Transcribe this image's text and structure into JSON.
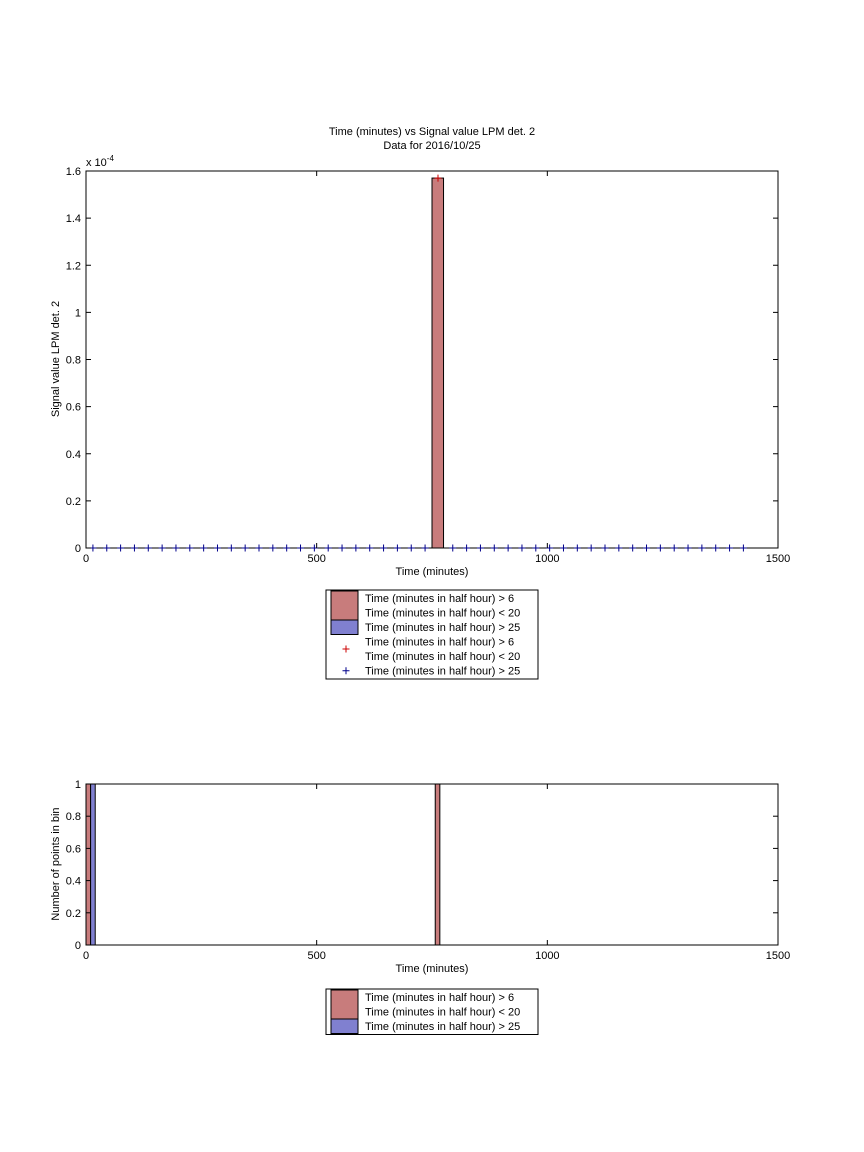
{
  "chart_data": [
    {
      "type": "bar",
      "title": "Time (minutes) vs Signal value LPM det. 2",
      "subtitle": "Data for 2016/10/25",
      "xlabel": "Time (minutes)",
      "ylabel": "Signal value LPM det. 2",
      "xlim": [
        0,
        1500
      ],
      "ylim": [
        0,
        1.6
      ],
      "y_multiplier": "x 10",
      "y_multiplier_exponent": "-4",
      "x_ticks": [
        "0",
        "500",
        "1000",
        "1500"
      ],
      "y_ticks": [
        "0",
        "0.2",
        "0.4",
        "0.6",
        "0.8",
        "1",
        "1.2",
        "1.4",
        "1.6"
      ],
      "grid": false,
      "legend_position": "below",
      "colors": {
        "series_red": "#c87c7c",
        "series_blue": "#8080d0",
        "marker_red": "#cc0000",
        "marker_blue": "#00008b"
      },
      "bars": [
        {
          "series": "red",
          "x0": 750,
          "x1": 775,
          "value": 1.57
        }
      ],
      "markers": [
        {
          "series": "red",
          "x": [
            763
          ],
          "y": [
            1.57
          ]
        },
        {
          "series": "blue",
          "x": [
            15,
            45,
            75,
            105,
            135,
            165,
            195,
            225,
            255,
            285,
            315,
            345,
            375,
            405,
            435,
            465,
            495,
            525,
            555,
            585,
            615,
            645,
            675,
            705,
            735,
            795,
            825,
            855,
            885,
            915,
            945,
            975,
            1005,
            1035,
            1065,
            1095,
            1125,
            1155,
            1185,
            1215,
            1245,
            1275,
            1305,
            1335,
            1365,
            1395,
            1425
          ],
          "y": 0
        }
      ],
      "legend": [
        {
          "kind": "patch",
          "color": "#c87c7c",
          "lines": [
            "Time (minutes in half hour) > 6",
            "Time (minutes in half hour) < 20"
          ]
        },
        {
          "kind": "patch",
          "color": "#8080d0",
          "lines": [
            "Time (minutes in half hour) > 25"
          ]
        },
        {
          "kind": "marker",
          "color": "#cc0000",
          "lines": [
            "Time (minutes in half hour) > 6",
            "Time (minutes in half hour) < 20"
          ]
        },
        {
          "kind": "marker",
          "color": "#00008b",
          "lines": [
            "Time (minutes in half hour) > 25"
          ]
        }
      ]
    },
    {
      "type": "bar",
      "xlabel": "Time (minutes)",
      "ylabel": "Number of points in bin",
      "xlim": [
        0,
        1500
      ],
      "ylim": [
        0,
        1
      ],
      "x_ticks": [
        "0",
        "500",
        "1000",
        "1500"
      ],
      "y_ticks": [
        "0",
        "0.2",
        "0.4",
        "0.6",
        "0.8",
        "1"
      ],
      "grid": false,
      "legend_position": "below",
      "bars": [
        {
          "series": "red",
          "x0": 0,
          "x1": 10,
          "value": 1
        },
        {
          "series": "blue",
          "x0": 10,
          "x1": 20,
          "value": 1
        },
        {
          "series": "red",
          "x0": 757,
          "x1": 767,
          "value": 1
        }
      ],
      "legend": [
        {
          "kind": "patch",
          "color": "#c87c7c",
          "lines": [
            "Time (minutes in half hour) > 6",
            "Time (minutes in half hour) < 20"
          ]
        },
        {
          "kind": "patch",
          "color": "#8080d0",
          "lines": [
            "Time (minutes in half hour) > 25"
          ]
        }
      ]
    }
  ]
}
